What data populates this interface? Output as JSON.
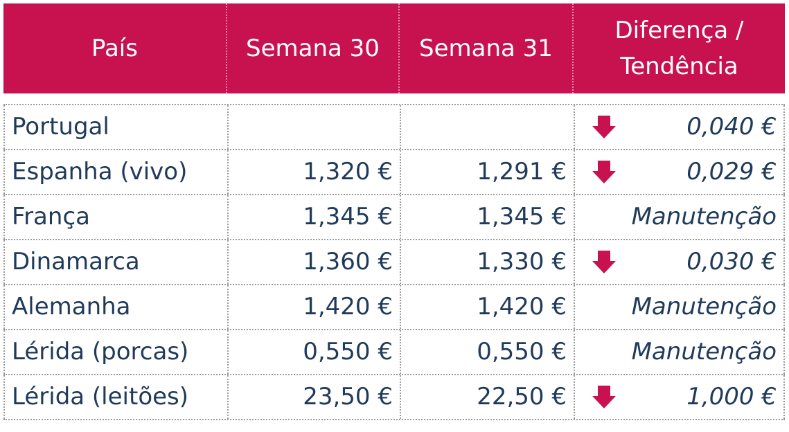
{
  "table": {
    "header": [
      "País",
      "Semana 30",
      "Semana 31",
      "Diferença / Tendência"
    ],
    "rows": [
      {
        "country": "Portugal",
        "difference": "0,040 €"
      },
      {
        "country": "Espanha (vivo)",
        "week30": "1,320 €",
        "week31": "1,291 €",
        "difference": "0,029 €"
      },
      {
        "country": "França",
        "week30": "1,345 €",
        "week31": "1,345 €",
        "difference": "Manutenção"
      },
      {
        "country": "Dinamarca",
        "week30": "1,360 €",
        "week31": "1,330 €",
        "difference": "0,030 €"
      },
      {
        "country": "Alemanha",
        "week30": "1,420 €",
        "week31": "1,420 €",
        "difference": "Manutenção"
      },
      {
        "country": "Lérida (porcas)",
        "week30": "0,550 €",
        "week31": "0,550 €",
        "difference": "Manutenção"
      },
      {
        "country": "Lérida (leitões)",
        "week30": "23,50 €",
        "week31": "22,50 €",
        "difference": "1,000 €"
      }
    ]
  }
}
